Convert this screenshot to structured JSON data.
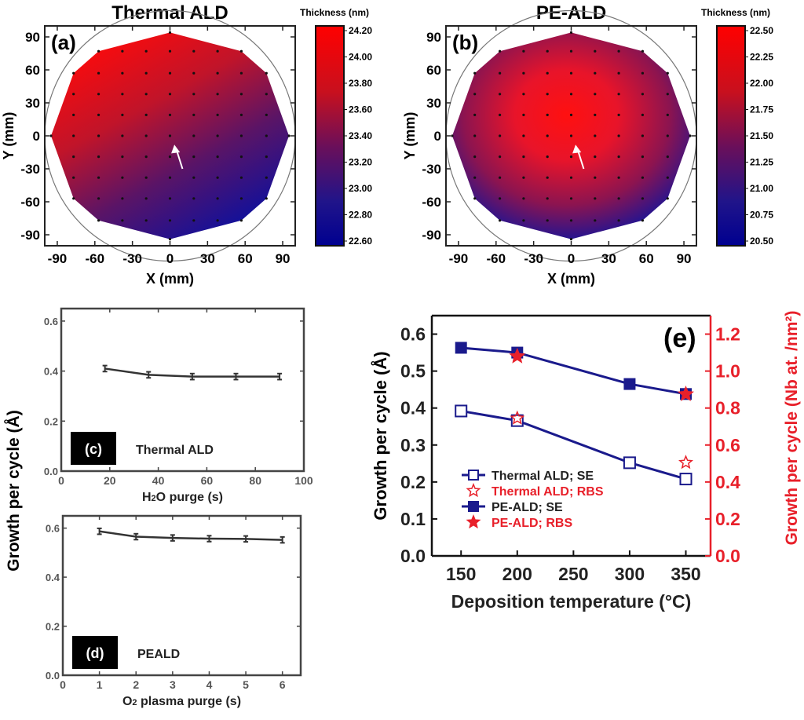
{
  "chart_data": [
    {
      "panel": "(a)",
      "type": "heatmap",
      "title": "Thermal ALD",
      "xlabel": "X (mm)",
      "ylabel": "Y (mm)",
      "xlim": [
        -100,
        100
      ],
      "ylim": [
        -100,
        100
      ],
      "xticks": [
        -90,
        -60,
        -30,
        0,
        30,
        60,
        90
      ],
      "yticks": [
        -90,
        -60,
        -30,
        0,
        30,
        60,
        90
      ],
      "colorbar": {
        "label": "Thickness (nm)",
        "range": [
          22.6,
          24.2
        ],
        "ticks": [
          "24.20",
          "24.00",
          "23.80",
          "23.60",
          "23.40",
          "23.20",
          "23.00",
          "22.80",
          "22.60"
        ]
      },
      "pattern": "thicker top-left, thinner bottom-right",
      "colors": {
        "high": "#ff0000",
        "low": "#000088"
      }
    },
    {
      "panel": "(b)",
      "type": "heatmap",
      "title": "PE-ALD",
      "xlabel": "X (mm)",
      "ylabel": "Y (mm)",
      "xlim": [
        -100,
        100
      ],
      "ylim": [
        -100,
        100
      ],
      "xticks": [
        -90,
        -60,
        -30,
        0,
        30,
        60,
        90
      ],
      "yticks": [
        -90,
        -60,
        -30,
        0,
        30,
        60,
        90
      ],
      "colorbar": {
        "label": "Thickness (nm)",
        "range": [
          20.5,
          22.5
        ],
        "ticks": [
          "22.50",
          "22.25",
          "22.00",
          "21.75",
          "21.50",
          "21.25",
          "21.00",
          "20.75",
          "20.50"
        ]
      },
      "pattern": "thickest at center, thinner toward edge",
      "colors": {
        "high": "#ff0000",
        "low": "#000088"
      }
    },
    {
      "panel": "(c)",
      "type": "line",
      "label": "Thermal ALD",
      "xlabel_main": "H",
      "xlabel_sub": "2",
      "xlabel_rest": "O  purge (s)",
      "xlim": [
        0,
        100
      ],
      "ylim": [
        0,
        0.65
      ],
      "xticks": [
        0,
        20,
        40,
        60,
        80,
        100
      ],
      "yticks": [
        "0.0",
        "0.2",
        "0.4",
        "0.6"
      ],
      "x": [
        18,
        36,
        54,
        72,
        90
      ],
      "y": [
        0.41,
        0.385,
        0.378,
        0.378,
        0.378
      ],
      "error": 0.012
    },
    {
      "panel": "(d)",
      "type": "line",
      "label": "PEALD",
      "xlabel_main": "O",
      "xlabel_sub": "2",
      "xlabel_rest": " plasma purge (s)",
      "xlim": [
        0,
        6.5
      ],
      "ylim": [
        0,
        0.65
      ],
      "xticks": [
        0,
        1,
        2,
        3,
        4,
        5,
        6
      ],
      "yticks": [
        "0.0",
        "0.2",
        "0.4",
        "0.6"
      ],
      "x": [
        1,
        2,
        3,
        4,
        5,
        6
      ],
      "y": [
        0.587,
        0.565,
        0.56,
        0.557,
        0.556,
        0.552
      ],
      "error": 0.012
    },
    {
      "panel": "(e)",
      "type": "line",
      "xlabel": "Deposition temperature (°C)",
      "ylabel": "Growth per cycle (Å)",
      "ylabel_right": "Growth per cycle (Nb at. /nm²)",
      "xlim": [
        124,
        372
      ],
      "ylim": [
        0,
        0.65
      ],
      "ylim_right": [
        0,
        1.3
      ],
      "xticks": [
        150,
        200,
        250,
        300,
        350
      ],
      "yticks": [
        "0.0",
        "0.1",
        "0.2",
        "0.3",
        "0.4",
        "0.5",
        "0.6"
      ],
      "yticks_right": [
        "0.0",
        "0.2",
        "0.4",
        "0.6",
        "0.8",
        "1.0",
        "1.2"
      ],
      "legend_placement": "lower-left",
      "series": [
        {
          "name": "Thermal ALD; SE",
          "axis": "left",
          "marker": "open-square",
          "color": "#1a1a8c",
          "x": [
            150,
            200,
            300,
            350
          ],
          "y": [
            0.392,
            0.366,
            0.252,
            0.208
          ]
        },
        {
          "name": "Thermal ALD; RBS",
          "axis": "right",
          "marker": "open-star",
          "color": "#e8202a",
          "x": [
            200,
            350
          ],
          "y": [
            0.745,
            0.505
          ]
        },
        {
          "name": "PE-ALD; SE",
          "axis": "left",
          "marker": "filled-square",
          "color": "#1a1a8c",
          "x": [
            150,
            200,
            300,
            350
          ],
          "y": [
            0.563,
            0.55,
            0.465,
            0.438
          ]
        },
        {
          "name": "PE-ALD; RBS",
          "axis": "right",
          "marker": "filled-star",
          "color": "#e8202a",
          "x": [
            200,
            350
          ],
          "y": [
            1.08,
            0.875
          ]
        }
      ]
    }
  ],
  "shared_ylabel_cd": "Growth per cycle (Å)"
}
